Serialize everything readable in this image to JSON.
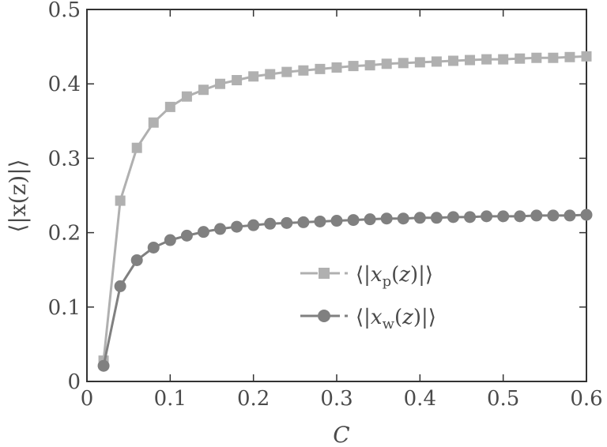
{
  "chart_data": {
    "type": "line",
    "xlabel": "C",
    "ylabel": "⟨|x(z)|⟩",
    "xlim": [
      0,
      0.6
    ],
    "ylim": [
      0,
      0.5
    ],
    "xticks": [
      0,
      0.1,
      0.2,
      0.3,
      0.4,
      0.5,
      0.6
    ],
    "xtick_labels": [
      "0",
      "0.1",
      "0.2",
      "0.3",
      "0.4",
      "0.5",
      "0.6"
    ],
    "yticks": [
      0,
      0.1,
      0.2,
      0.3,
      0.4,
      0.5
    ],
    "ytick_labels": [
      "0",
      "0.1",
      "0.2",
      "0.3",
      "0.4",
      "0.5"
    ],
    "grid": false,
    "legend_position": "center-right",
    "x": [
      0.02,
      0.04,
      0.06,
      0.08,
      0.1,
      0.12,
      0.14,
      0.16,
      0.18,
      0.2,
      0.22,
      0.24,
      0.26,
      0.28,
      0.3,
      0.32,
      0.34,
      0.36,
      0.38,
      0.4,
      0.42,
      0.44,
      0.46,
      0.48,
      0.5,
      0.52,
      0.54,
      0.56,
      0.58,
      0.6
    ],
    "series": [
      {
        "name": "⟨|x_p(z)|⟩",
        "marker": "square",
        "color": "#b0b0b0",
        "values": [
          0.028,
          0.243,
          0.314,
          0.348,
          0.369,
          0.383,
          0.392,
          0.4,
          0.405,
          0.41,
          0.413,
          0.416,
          0.418,
          0.42,
          0.422,
          0.424,
          0.425,
          0.427,
          0.428,
          0.429,
          0.43,
          0.431,
          0.432,
          0.433,
          0.433,
          0.434,
          0.435,
          0.435,
          0.436,
          0.437
        ]
      },
      {
        "name": "⟨|x_w(z)|⟩",
        "marker": "circle",
        "color": "#808080",
        "values": [
          0.021,
          0.128,
          0.163,
          0.18,
          0.19,
          0.196,
          0.201,
          0.205,
          0.208,
          0.21,
          0.212,
          0.213,
          0.214,
          0.215,
          0.216,
          0.217,
          0.218,
          0.219,
          0.219,
          0.22,
          0.22,
          0.221,
          0.221,
          0.222,
          0.222,
          0.222,
          0.223,
          0.223,
          0.223,
          0.224
        ]
      }
    ]
  }
}
